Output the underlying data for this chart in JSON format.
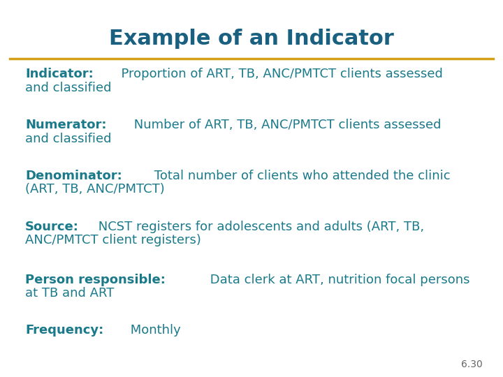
{
  "title": "Example of an Indicator",
  "title_color": "#1a6080",
  "title_fontsize": 22,
  "separator_color": "#d4a017",
  "background_color": "#ffffff",
  "teal_color": "#1a7a8a",
  "body_fontsize": 13,
  "page_number": "6.30",
  "items": [
    {
      "bold_text": "Indicator:",
      "normal_text": "  Proportion of ART, TB, ANC/PMTCT clients assessed\nand classified"
    },
    {
      "bold_text": "Numerator:",
      "normal_text": " Number of ART, TB, ANC/PMTCT clients assessed\nand classified"
    },
    {
      "bold_text": "Denominator:",
      "normal_text": " Total number of clients who attended the clinic\n(ART, TB, ANC/PMTCT)"
    },
    {
      "bold_text": "Source:",
      "normal_text": " NCST registers for adolescents and adults (ART, TB,\nANC/PMTCT client registers)"
    },
    {
      "bold_text": "Person responsible:",
      "normal_text": " Data clerk at ART, nutrition focal persons\nat TB and ART"
    },
    {
      "bold_text": "Frequency:",
      "normal_text": " Monthly"
    }
  ]
}
